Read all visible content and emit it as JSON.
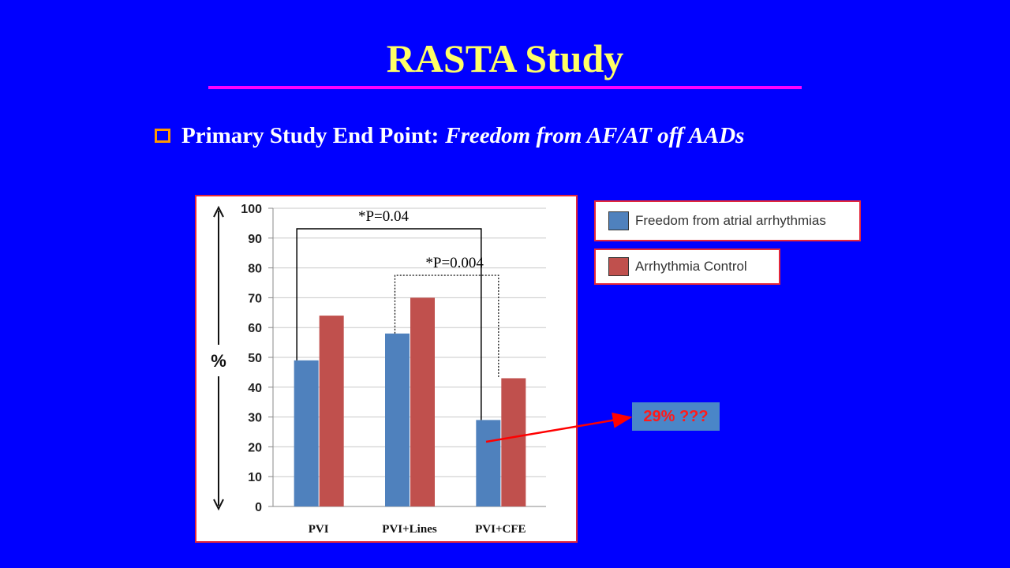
{
  "slide": {
    "title": "RASTA Study",
    "bullet_label": "Primary Study End Point:",
    "bullet_italic": "Freedom from AF/AT off AADs",
    "callout_text": "29% ???"
  },
  "colors": {
    "background": "#0000ff",
    "title": "#ffff66",
    "rule": "#ff00ff",
    "bullet_box": "#ff9900",
    "series_1": "#4f81bd",
    "series_2": "#c0504d",
    "callout_bg": "#4a86c8",
    "callout_text": "#ff1a1a",
    "arrow": "#ff0000"
  },
  "chart_data": {
    "type": "bar",
    "categories": [
      "PVI",
      "PVI+Lines",
      "PVI+CFE"
    ],
    "series": [
      {
        "name": "Freedom from atrial arrhythmias",
        "values": [
          49,
          58,
          29
        ]
      },
      {
        "name": "Arrhythmia Control",
        "values": [
          64,
          70,
          43
        ]
      }
    ],
    "ylabel": "%",
    "ylim": [
      0,
      100
    ],
    "yticks": [
      0,
      10,
      20,
      30,
      40,
      50,
      60,
      70,
      80,
      90,
      100
    ],
    "grid": true,
    "legend_position": "right",
    "annotations": [
      {
        "text": "*P=0.04",
        "from_category": "PVI",
        "to_category": "PVI+CFE",
        "style": "solid"
      },
      {
        "text": "*P=0.004",
        "from_category": "PVI+Lines",
        "to_category": "PVI+CFE",
        "style": "dotted"
      }
    ]
  }
}
